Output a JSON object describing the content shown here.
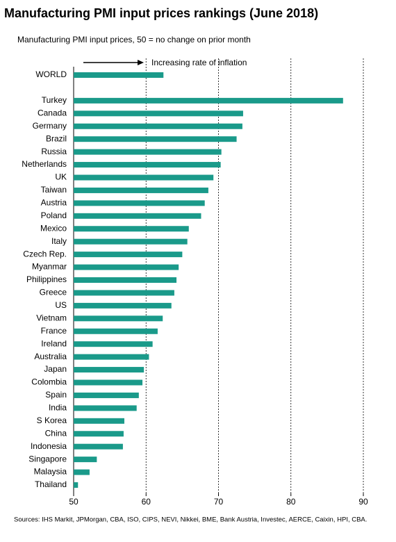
{
  "chart_data": {
    "type": "hbar",
    "title": "Manufacturing PMI input prices rankings (June 2018)",
    "subtitle": "Manufacturing PMI input prices, 50 = no change on prior month",
    "annotation": "Increasing rate of inflation",
    "source": "Sources: IHS Markit, JPMorgan, CBA, ISO, CIPS, NEVI, Nikkei, BME, Bank Austria, Investec, AERCE, Caixin, HPI, CBA.",
    "categories": [
      "WORLD",
      null,
      "Turkey",
      "Canada",
      "Germany",
      "Brazil",
      "Russia",
      "Netherlands",
      "UK",
      "Taiwan",
      "Austria",
      "Poland",
      "Mexico",
      "Italy",
      "Czech Rep.",
      "Myanmar",
      "Philippines",
      "Greece",
      "US",
      "Vietnam",
      "France",
      "Ireland",
      "Australia",
      "Japan",
      "Colombia",
      "Spain",
      "India",
      "S Korea",
      "China",
      "Indonesia",
      "Singapore",
      "Malaysia",
      "Thailand"
    ],
    "values": [
      62.4,
      null,
      87.2,
      73.4,
      73.3,
      72.5,
      70.4,
      70.3,
      69.3,
      68.6,
      68.1,
      67.6,
      65.9,
      65.7,
      65.0,
      64.5,
      64.2,
      63.9,
      63.5,
      62.3,
      61.6,
      60.9,
      60.4,
      59.7,
      59.5,
      59.0,
      58.7,
      57.0,
      56.9,
      56.8,
      53.2,
      52.2,
      50.6
    ],
    "color": "#1a9a8a",
    "xlim": [
      50,
      90
    ],
    "xticks": [
      50,
      60,
      70,
      80,
      90
    ],
    "grid": true
  }
}
